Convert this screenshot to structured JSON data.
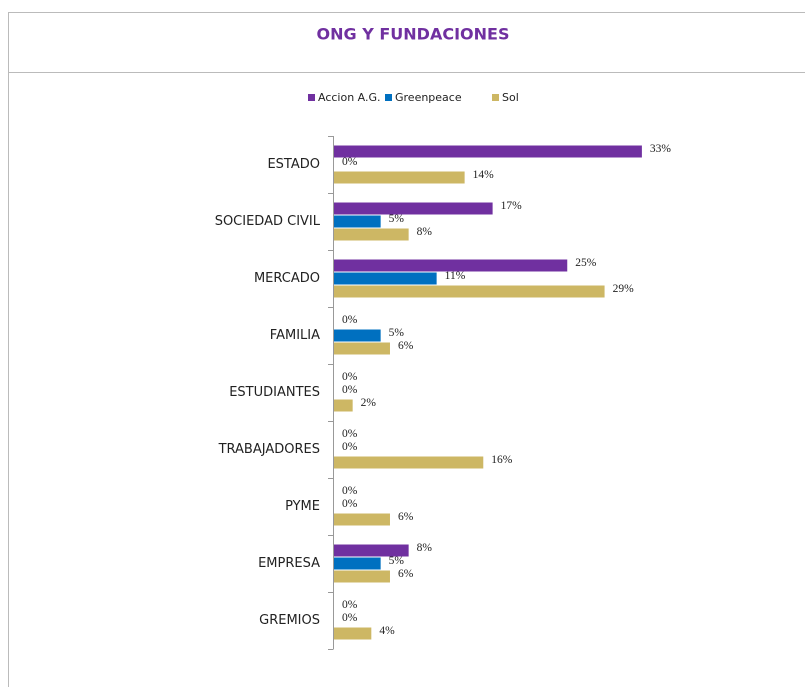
{
  "chart_data": {
    "type": "hbar",
    "title": "ONG Y FUNDACIONES",
    "categories": [
      "ESTADO",
      "SOCIEDAD CIVIL",
      "MERCADO",
      "FAMILIA",
      "ESTUDIANTES",
      "TRABAJADORES",
      "PYME",
      "EMPRESA",
      "GREMIOS"
    ],
    "series": [
      {
        "name": "Accion A.G.",
        "color": "#7030a0",
        "values": [
          33,
          17,
          25,
          0,
          0,
          0,
          0,
          8,
          0
        ],
        "value_labels": [
          "33%",
          "17%",
          "25%",
          "0%",
          "0%",
          "0%",
          "0%",
          "8%",
          "0%"
        ]
      },
      {
        "name": "Greenpeace",
        "color": "#0070c0",
        "values": [
          0,
          5,
          11,
          5,
          0,
          0,
          0,
          5,
          0
        ],
        "value_labels": [
          "0%",
          "5%",
          "11%",
          "5%",
          "0%",
          "0%",
          "0%",
          "5%",
          "0%"
        ]
      },
      {
        "name": "Sol",
        "color": "#cdb764",
        "values": [
          14,
          8,
          29,
          6,
          2,
          16,
          6,
          6,
          4
        ],
        "value_labels": [
          "14%",
          "8%",
          "29%",
          "6%",
          "2%",
          "16%",
          "6%",
          "6%",
          "4%"
        ]
      }
    ],
    "legend": "top"
  }
}
